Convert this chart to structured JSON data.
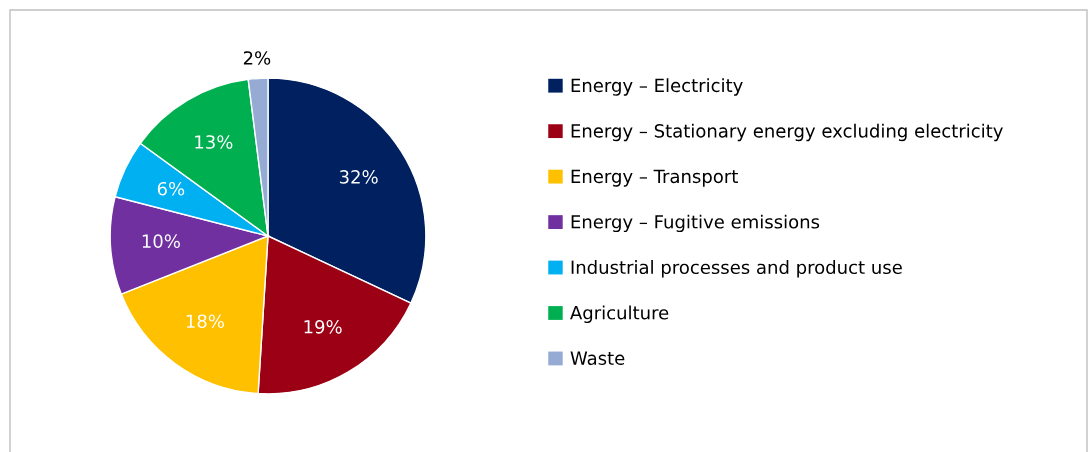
{
  "chart_data": {
    "type": "pie",
    "categories": [
      "Energy – Electricity",
      "Energy – Stationary energy excluding electricity",
      "Energy – Transport",
      "Energy – Fugitive emissions",
      "Industrial processes and product use",
      "Agriculture",
      "Waste"
    ],
    "values": [
      32,
      19,
      18,
      10,
      6,
      13,
      2
    ],
    "colors": [
      "#002060",
      "#9b0014",
      "#ffc000",
      "#7030a0",
      "#00b0f0",
      "#00b050",
      "#95abd4"
    ],
    "value_labels": [
      "32%",
      "19%",
      "18%",
      "10%",
      "6%",
      "13%",
      "2%"
    ],
    "legend": "right"
  }
}
